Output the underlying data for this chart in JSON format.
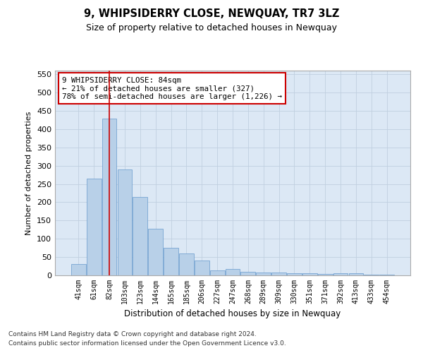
{
  "title": "9, WHIPSIDERRY CLOSE, NEWQUAY, TR7 3LZ",
  "subtitle": "Size of property relative to detached houses in Newquay",
  "xlabel": "Distribution of detached houses by size in Newquay",
  "ylabel": "Number of detached properties",
  "categories": [
    "41sqm",
    "61sqm",
    "82sqm",
    "103sqm",
    "123sqm",
    "144sqm",
    "165sqm",
    "185sqm",
    "206sqm",
    "227sqm",
    "247sqm",
    "268sqm",
    "289sqm",
    "309sqm",
    "330sqm",
    "351sqm",
    "371sqm",
    "392sqm",
    "413sqm",
    "433sqm",
    "454sqm"
  ],
  "values": [
    30,
    265,
    428,
    290,
    215,
    127,
    75,
    60,
    40,
    13,
    17,
    10,
    8,
    8,
    5,
    5,
    3,
    5,
    5,
    2,
    2
  ],
  "bar_color": "#b8d0e8",
  "bar_edge_color": "#6699cc",
  "highlight_bar_index": 2,
  "highlight_line_color": "#cc0000",
  "ylim": [
    0,
    560
  ],
  "yticks": [
    0,
    50,
    100,
    150,
    200,
    250,
    300,
    350,
    400,
    450,
    500,
    550
  ],
  "annotation_text": "9 WHIPSIDERRY CLOSE: 84sqm\n← 21% of detached houses are smaller (327)\n78% of semi-detached houses are larger (1,226) →",
  "annotation_box_color": "#ffffff",
  "annotation_box_edge": "#cc0000",
  "footer_line1": "Contains HM Land Registry data © Crown copyright and database right 2024.",
  "footer_line2": "Contains public sector information licensed under the Open Government Licence v3.0.",
  "background_color": "#ffffff",
  "axes_bg_color": "#dce8f5",
  "grid_color": "#c0cfe0"
}
